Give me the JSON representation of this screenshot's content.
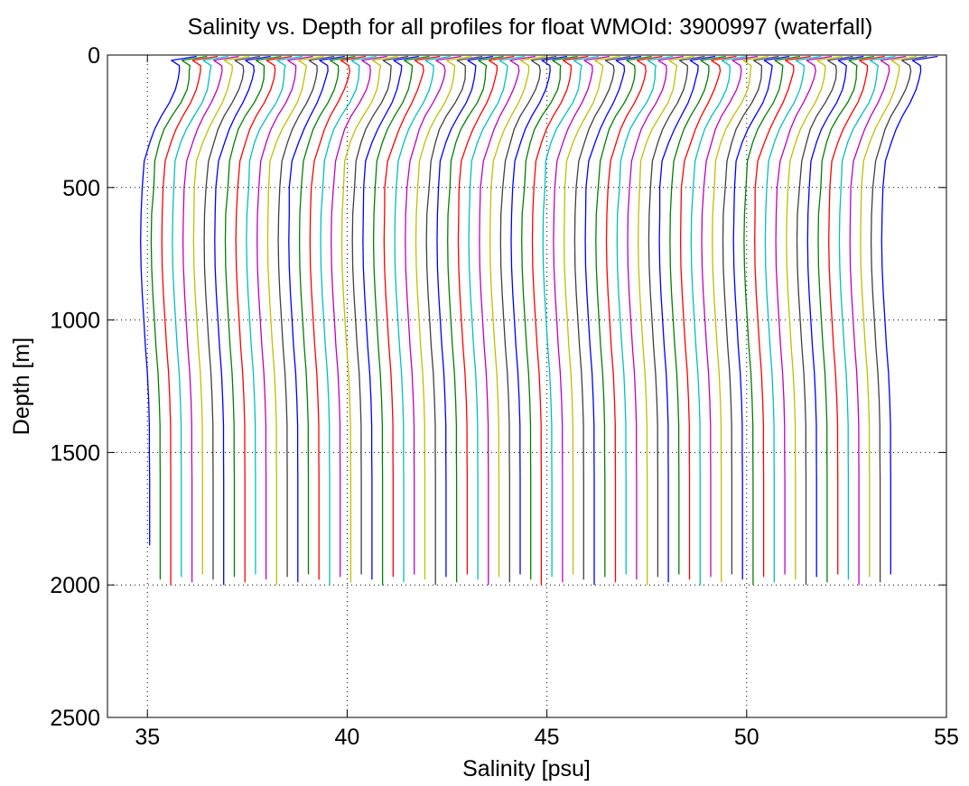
{
  "chart_data": {
    "type": "line",
    "title": "Salinity vs. Depth for all profiles for float WMOId: 3900997 (waterfall)",
    "xlabel": "Salinity [psu]",
    "ylabel": "Depth [m]",
    "xlim": [
      34,
      55
    ],
    "ylim": [
      0,
      2500
    ],
    "y_reversed": true,
    "grid": "dotted",
    "xticks": [
      35,
      40,
      45,
      50,
      55
    ],
    "yticks": [
      0,
      500,
      1000,
      1500,
      2000,
      2500
    ],
    "xtick_labels": [
      "35",
      "40",
      "45",
      "50",
      "55"
    ],
    "ytick_labels": [
      "0",
      "500",
      "1000",
      "1500",
      "2000",
      "2500"
    ],
    "color_cycle": [
      "#0000ff",
      "#008000",
      "#ff0000",
      "#00bfbf",
      "#bf00bf",
      "#bfbf00",
      "#404040"
    ],
    "series_count": 71,
    "profile_offset_step": 0.265,
    "profile_depths": [
      5,
      20,
      40,
      60,
      90,
      130,
      180,
      230,
      280,
      330,
      400,
      500,
      600,
      700,
      800,
      900,
      1000,
      1100,
      1200,
      1300,
      1400,
      1500,
      1600,
      1700,
      1800,
      1900,
      1980
    ],
    "profile_shape": [
      1.23,
      0.6,
      0.8,
      0.8,
      0.77,
      0.7,
      0.55,
      0.35,
      0.18,
      0.06,
      -0.08,
      -0.13,
      -0.16,
      -0.17,
      -0.16,
      -0.13,
      -0.09,
      -0.05,
      0.0,
      0.03,
      0.05,
      0.05,
      0.055,
      0.055,
      0.055,
      0.055,
      0.055
    ],
    "first_profile_base": 35.0,
    "series": []
  }
}
